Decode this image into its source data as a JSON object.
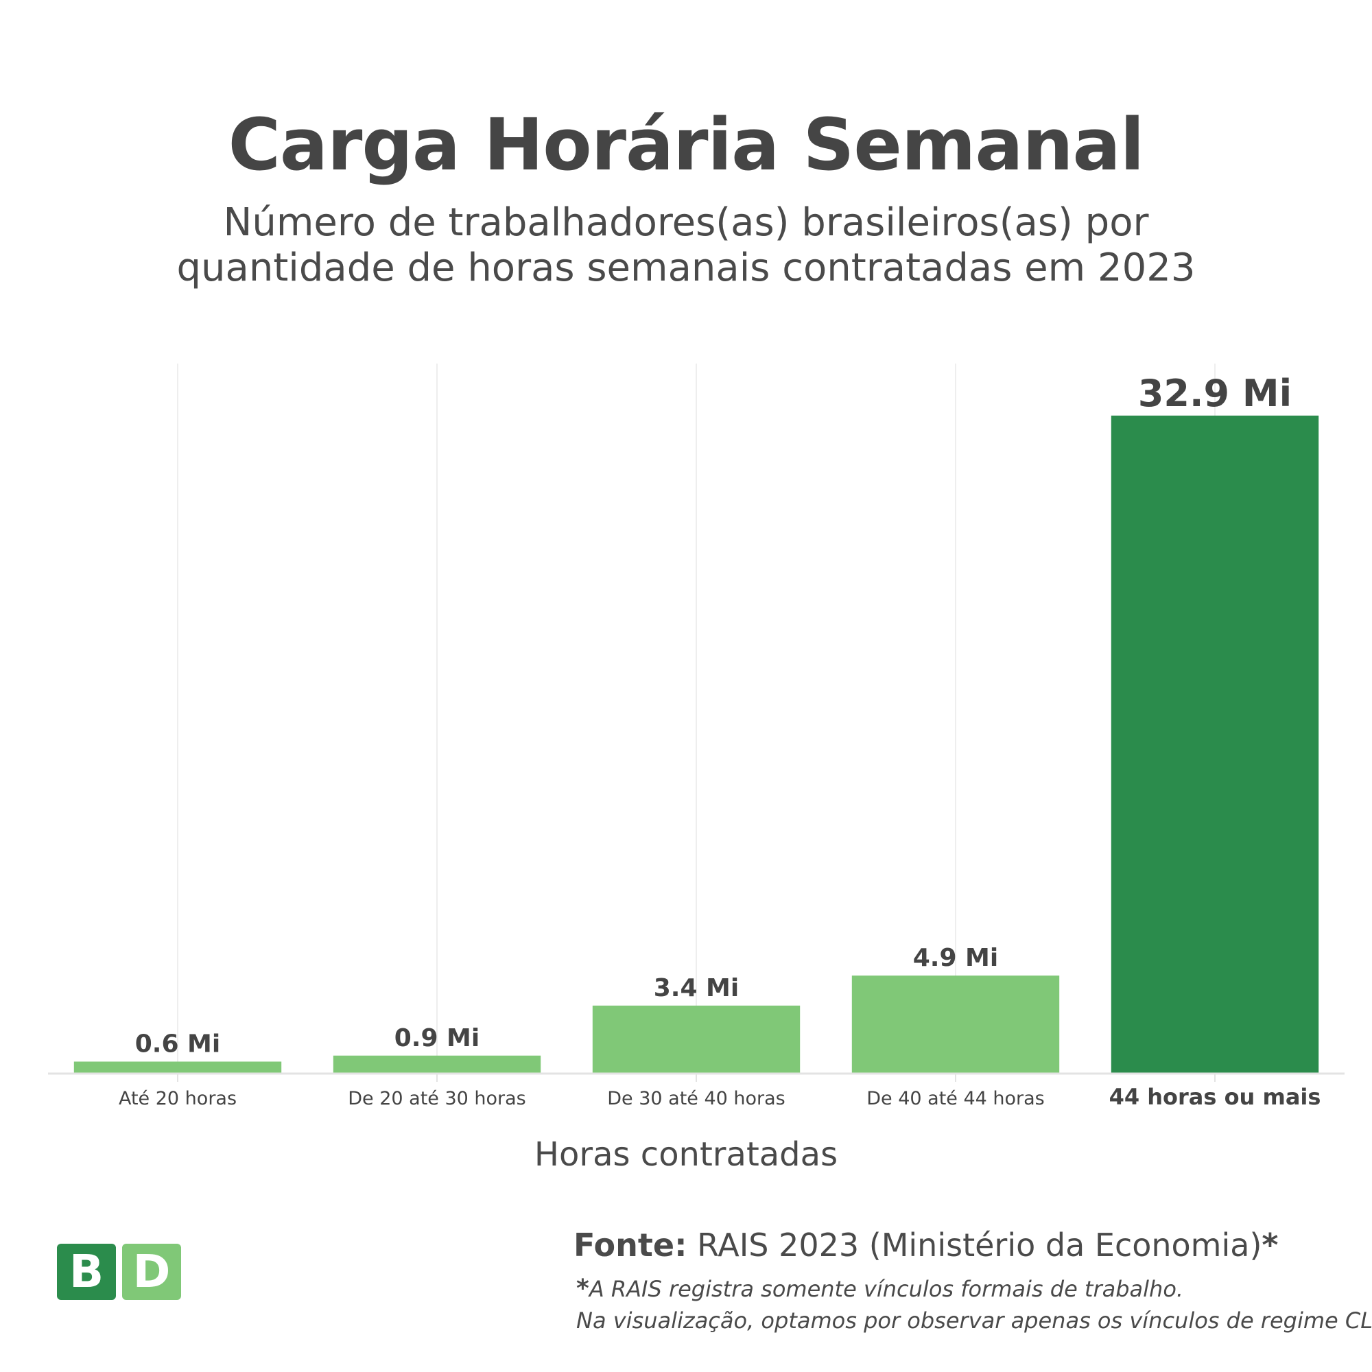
{
  "header": {
    "title": "Carga Horária Semanal",
    "subtitle_line1": "Número de trabalhadores(as) brasileiros(as) por",
    "subtitle_line2": "quantidade de horas semanais contratadas em 2023"
  },
  "chart_data": {
    "type": "bar",
    "title": "Carga Horária Semanal",
    "xlabel": "Horas contratadas",
    "ylabel": "",
    "categories": [
      "Até 20 horas",
      "De 20 até 30 horas",
      "De 30 até 40 horas",
      "De 40 até 44 horas",
      "44 horas ou mais"
    ],
    "values": [
      0.6,
      0.9,
      3.4,
      4.9,
      32.9
    ],
    "value_labels": [
      "0.6 Mi",
      "0.9 Mi",
      "3.4 Mi",
      "4.9 Mi",
      "32.9 Mi"
    ],
    "unit": "Mi",
    "ylim": [
      0,
      35.5
    ],
    "highlight_index": 4,
    "colors": {
      "bar": "#80c877",
      "highlight": "#2b8c4c",
      "grid": "#eeeeee",
      "axis": "#e3e3e3",
      "text": "#444444"
    },
    "grid": true,
    "legend": "none"
  },
  "footer": {
    "logo_b": "B",
    "logo_d": "D",
    "source_label": "Fonte:",
    "source_text": " RAIS 2023 (Ministério da Economia)",
    "source_star": "*",
    "note_star": "*",
    "note_line1": "A RAIS registra somente vínculos formais de trabalho.",
    "note_line2": "Na visualização, optamos por observar apenas os vínculos de regime CLT"
  }
}
